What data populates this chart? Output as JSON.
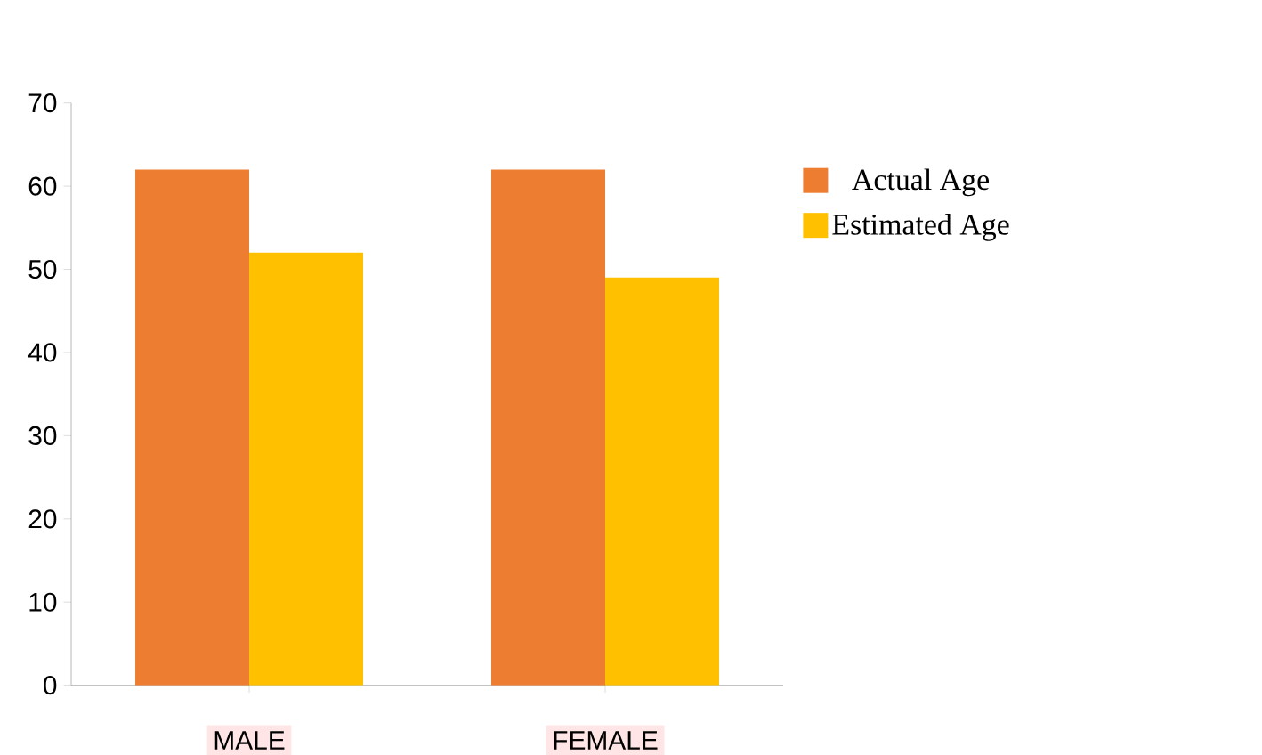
{
  "chart_data": {
    "type": "bar",
    "categories": [
      "MALE",
      "FEMALE"
    ],
    "series": [
      {
        "name": "Actual Age",
        "color": "#ed7d31",
        "values": [
          62,
          62
        ]
      },
      {
        "name": "Estimated Age",
        "color": "#ffc000",
        "values": [
          52,
          49
        ]
      }
    ],
    "ylim": [
      0,
      70
    ],
    "yticks": [
      0,
      10,
      20,
      30,
      40,
      50,
      60,
      70
    ],
    "grid": false,
    "legend": "right"
  }
}
